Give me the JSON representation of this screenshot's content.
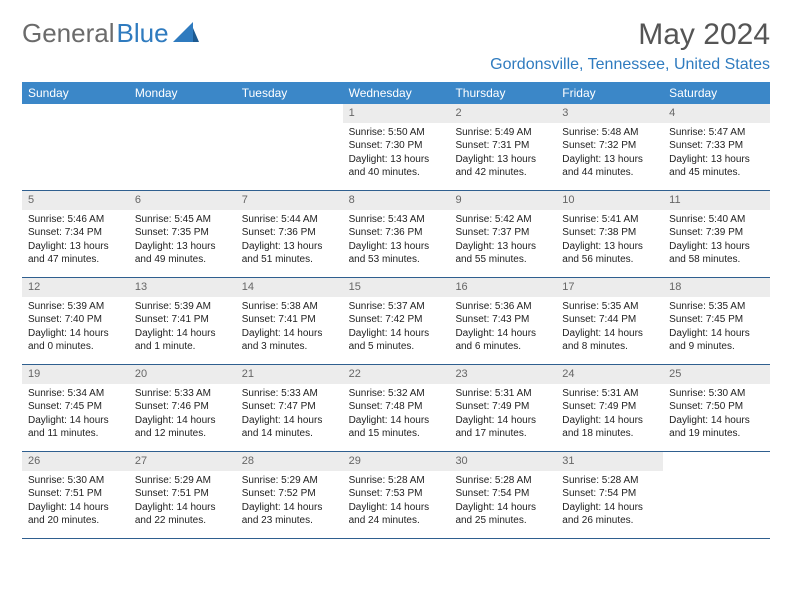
{
  "logo": {
    "text1": "General",
    "text2": "Blue"
  },
  "header": {
    "month_title": "May 2024",
    "location": "Gordonsville, Tennessee, United States"
  },
  "colors": {
    "header_bg": "#3b87c8",
    "header_text": "#ffffff",
    "daynum_bg": "#ececec",
    "daynum_text": "#666666",
    "border": "#2f5f8f",
    "logo_gray": "#6b6b6b",
    "logo_blue": "#2f7bbf",
    "title_color": "#555555"
  },
  "weekdays": [
    "Sunday",
    "Monday",
    "Tuesday",
    "Wednesday",
    "Thursday",
    "Friday",
    "Saturday"
  ],
  "weeks": [
    [
      {
        "empty": true
      },
      {
        "empty": true
      },
      {
        "empty": true
      },
      {
        "num": "1",
        "sunrise": "5:50 AM",
        "sunset": "7:30 PM",
        "daylight": "13 hours and 40 minutes."
      },
      {
        "num": "2",
        "sunrise": "5:49 AM",
        "sunset": "7:31 PM",
        "daylight": "13 hours and 42 minutes."
      },
      {
        "num": "3",
        "sunrise": "5:48 AM",
        "sunset": "7:32 PM",
        "daylight": "13 hours and 44 minutes."
      },
      {
        "num": "4",
        "sunrise": "5:47 AM",
        "sunset": "7:33 PM",
        "daylight": "13 hours and 45 minutes."
      }
    ],
    [
      {
        "num": "5",
        "sunrise": "5:46 AM",
        "sunset": "7:34 PM",
        "daylight": "13 hours and 47 minutes."
      },
      {
        "num": "6",
        "sunrise": "5:45 AM",
        "sunset": "7:35 PM",
        "daylight": "13 hours and 49 minutes."
      },
      {
        "num": "7",
        "sunrise": "5:44 AM",
        "sunset": "7:36 PM",
        "daylight": "13 hours and 51 minutes."
      },
      {
        "num": "8",
        "sunrise": "5:43 AM",
        "sunset": "7:36 PM",
        "daylight": "13 hours and 53 minutes."
      },
      {
        "num": "9",
        "sunrise": "5:42 AM",
        "sunset": "7:37 PM",
        "daylight": "13 hours and 55 minutes."
      },
      {
        "num": "10",
        "sunrise": "5:41 AM",
        "sunset": "7:38 PM",
        "daylight": "13 hours and 56 minutes."
      },
      {
        "num": "11",
        "sunrise": "5:40 AM",
        "sunset": "7:39 PM",
        "daylight": "13 hours and 58 minutes."
      }
    ],
    [
      {
        "num": "12",
        "sunrise": "5:39 AM",
        "sunset": "7:40 PM",
        "daylight": "14 hours and 0 minutes."
      },
      {
        "num": "13",
        "sunrise": "5:39 AM",
        "sunset": "7:41 PM",
        "daylight": "14 hours and 1 minute."
      },
      {
        "num": "14",
        "sunrise": "5:38 AM",
        "sunset": "7:41 PM",
        "daylight": "14 hours and 3 minutes."
      },
      {
        "num": "15",
        "sunrise": "5:37 AM",
        "sunset": "7:42 PM",
        "daylight": "14 hours and 5 minutes."
      },
      {
        "num": "16",
        "sunrise": "5:36 AM",
        "sunset": "7:43 PM",
        "daylight": "14 hours and 6 minutes."
      },
      {
        "num": "17",
        "sunrise": "5:35 AM",
        "sunset": "7:44 PM",
        "daylight": "14 hours and 8 minutes."
      },
      {
        "num": "18",
        "sunrise": "5:35 AM",
        "sunset": "7:45 PM",
        "daylight": "14 hours and 9 minutes."
      }
    ],
    [
      {
        "num": "19",
        "sunrise": "5:34 AM",
        "sunset": "7:45 PM",
        "daylight": "14 hours and 11 minutes."
      },
      {
        "num": "20",
        "sunrise": "5:33 AM",
        "sunset": "7:46 PM",
        "daylight": "14 hours and 12 minutes."
      },
      {
        "num": "21",
        "sunrise": "5:33 AM",
        "sunset": "7:47 PM",
        "daylight": "14 hours and 14 minutes."
      },
      {
        "num": "22",
        "sunrise": "5:32 AM",
        "sunset": "7:48 PM",
        "daylight": "14 hours and 15 minutes."
      },
      {
        "num": "23",
        "sunrise": "5:31 AM",
        "sunset": "7:49 PM",
        "daylight": "14 hours and 17 minutes."
      },
      {
        "num": "24",
        "sunrise": "5:31 AM",
        "sunset": "7:49 PM",
        "daylight": "14 hours and 18 minutes."
      },
      {
        "num": "25",
        "sunrise": "5:30 AM",
        "sunset": "7:50 PM",
        "daylight": "14 hours and 19 minutes."
      }
    ],
    [
      {
        "num": "26",
        "sunrise": "5:30 AM",
        "sunset": "7:51 PM",
        "daylight": "14 hours and 20 minutes."
      },
      {
        "num": "27",
        "sunrise": "5:29 AM",
        "sunset": "7:51 PM",
        "daylight": "14 hours and 22 minutes."
      },
      {
        "num": "28",
        "sunrise": "5:29 AM",
        "sunset": "7:52 PM",
        "daylight": "14 hours and 23 minutes."
      },
      {
        "num": "29",
        "sunrise": "5:28 AM",
        "sunset": "7:53 PM",
        "daylight": "14 hours and 24 minutes."
      },
      {
        "num": "30",
        "sunrise": "5:28 AM",
        "sunset": "7:54 PM",
        "daylight": "14 hours and 25 minutes."
      },
      {
        "num": "31",
        "sunrise": "5:28 AM",
        "sunset": "7:54 PM",
        "daylight": "14 hours and 26 minutes."
      },
      {
        "empty": true
      }
    ]
  ],
  "labels": {
    "sunrise_prefix": "Sunrise: ",
    "sunset_prefix": "Sunset: ",
    "daylight_prefix": "Daylight: "
  }
}
